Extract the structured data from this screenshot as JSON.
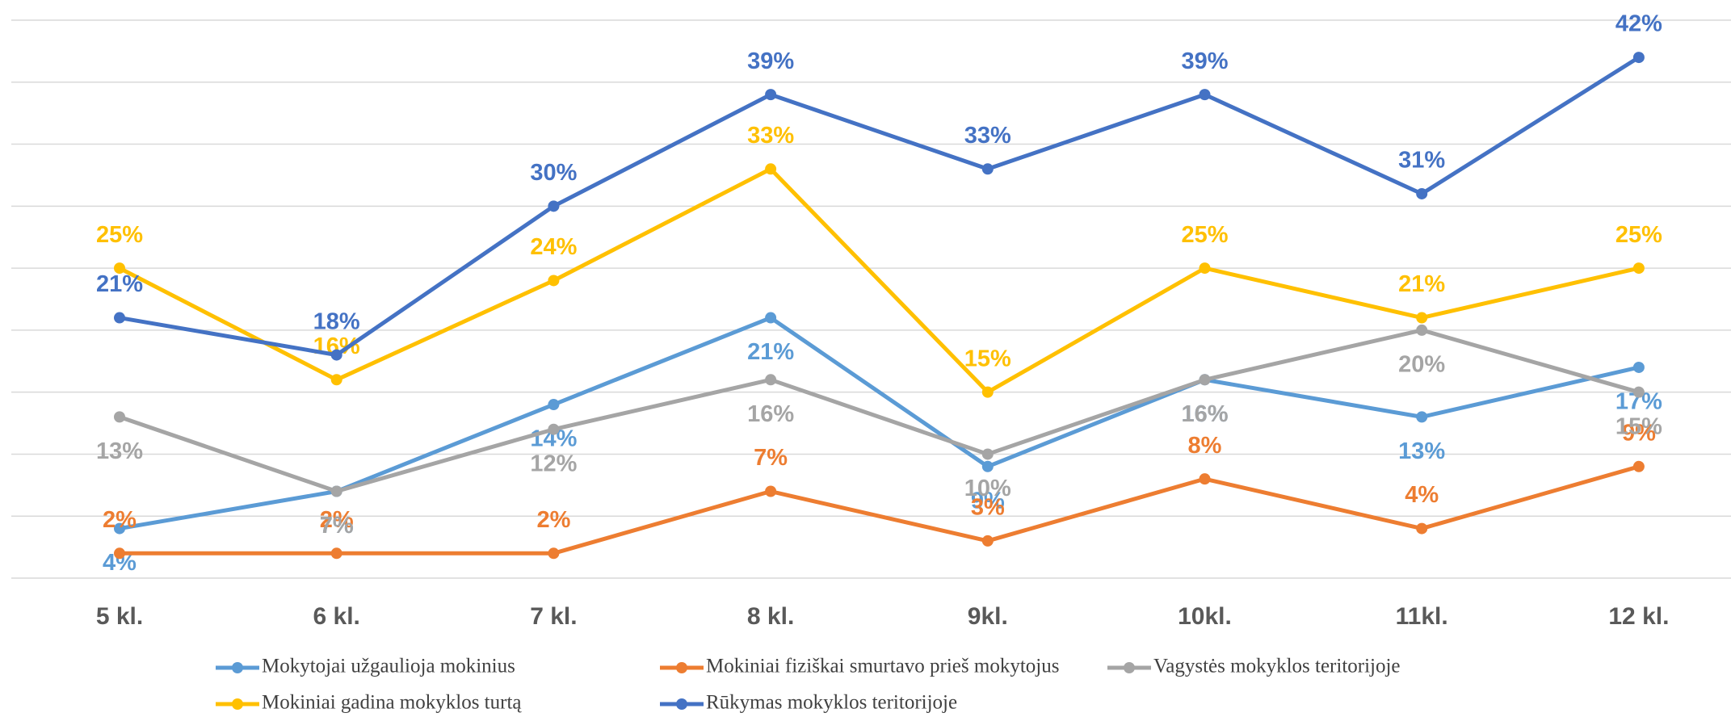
{
  "chart_data": {
    "type": "line",
    "categories": [
      "5 kl.",
      "6 kl.",
      "7 kl.",
      "8 kl.",
      "9kl.",
      "10kl.",
      "11kl.",
      "12 kl."
    ],
    "ylim": [
      0,
      45
    ],
    "yticks": [
      0,
      5,
      10,
      15,
      20,
      25,
      30,
      35,
      40,
      45
    ],
    "grid": true,
    "series": [
      {
        "name": "Mokytojai užgaulioja mokinius",
        "color": "#5b9bd5",
        "values": [
          4,
          7,
          14,
          21,
          9,
          16,
          13,
          17
        ],
        "value_labels": [
          "4%",
          "7%",
          "14%",
          "21%",
          "9%",
          "16%",
          "13%",
          "17%"
        ]
      },
      {
        "name": "Mokiniai fiziškai smurtavo prieš mokytojus",
        "color": "#ed7d31",
        "values": [
          2,
          2,
          2,
          7,
          3,
          8,
          4,
          9
        ],
        "value_labels": [
          "2%",
          "2%",
          "2%",
          "7%",
          "3%",
          "8%",
          "4%",
          "9%"
        ]
      },
      {
        "name": "Vagystės mokyklos teritorijoje",
        "color": "#a5a5a5",
        "values": [
          13,
          7,
          12,
          16,
          10,
          16,
          20,
          15
        ],
        "value_labels": [
          "13%",
          "7%",
          "12%",
          "16%",
          "10%",
          "16%",
          "20%",
          "15%"
        ]
      },
      {
        "name": "Mokiniai gadina mokyklos turtą",
        "color": "#ffc000",
        "values": [
          25,
          16,
          24,
          33,
          15,
          25,
          21,
          25
        ],
        "value_labels": [
          "25%",
          "16%",
          "24%",
          "33%",
          "15%",
          "25%",
          "21%",
          "25%"
        ]
      },
      {
        "name": "Rūkymas mokyklos teritorijoje",
        "color": "#4472c4",
        "values": [
          21,
          18,
          30,
          39,
          33,
          39,
          31,
          42
        ],
        "value_labels": [
          "21%",
          "18%",
          "30%",
          "39%",
          "33%",
          "39%",
          "31%",
          "42%"
        ]
      }
    ]
  }
}
